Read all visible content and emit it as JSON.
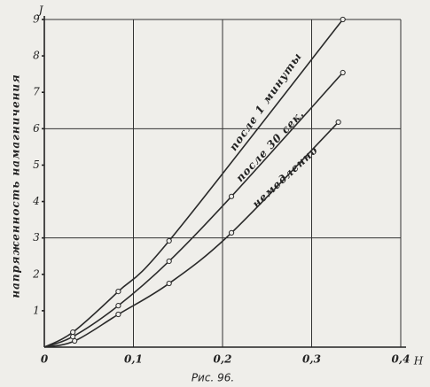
{
  "chart_data": {
    "type": "line",
    "y_label": "J",
    "x_label": "H",
    "y_axis_title": "напряженность намагничения",
    "caption": "Рис. 96.",
    "series": [
      {
        "name": "после 1 минуты",
        "color": "#2a2a2a",
        "x": [
          0,
          0.032,
          0.083,
          0.14,
          0.335
        ],
        "values": [
          0,
          0.41,
          1.53,
          2.92,
          9.0
        ]
      },
      {
        "name": "после 30 сек.",
        "color": "#2a2a2a",
        "x": [
          0,
          0.032,
          0.083,
          0.14,
          0.21,
          0.335
        ],
        "values": [
          0,
          0.29,
          1.14,
          2.36,
          4.14,
          7.54
        ]
      },
      {
        "name": "немедленно",
        "color": "#2a2a2a",
        "x": [
          0,
          0.034,
          0.083,
          0.14,
          0.21,
          0.33
        ],
        "values": [
          0,
          0.17,
          0.9,
          1.75,
          3.14,
          6.18
        ]
      }
    ],
    "xlim": [
      0,
      0.4
    ],
    "xticks": [
      0,
      {
        "value": 0.1,
        "label": "0,1"
      },
      {
        "value": 0.2,
        "label": "0,2"
      },
      {
        "value": 0.3,
        "label": "0,3"
      },
      {
        "value": 0.4,
        "label": "0,4"
      }
    ],
    "ylim": [
      0,
      9
    ],
    "yticks": [
      1,
      2,
      3,
      4,
      5,
      6,
      7,
      8,
      9
    ],
    "grid": true
  }
}
